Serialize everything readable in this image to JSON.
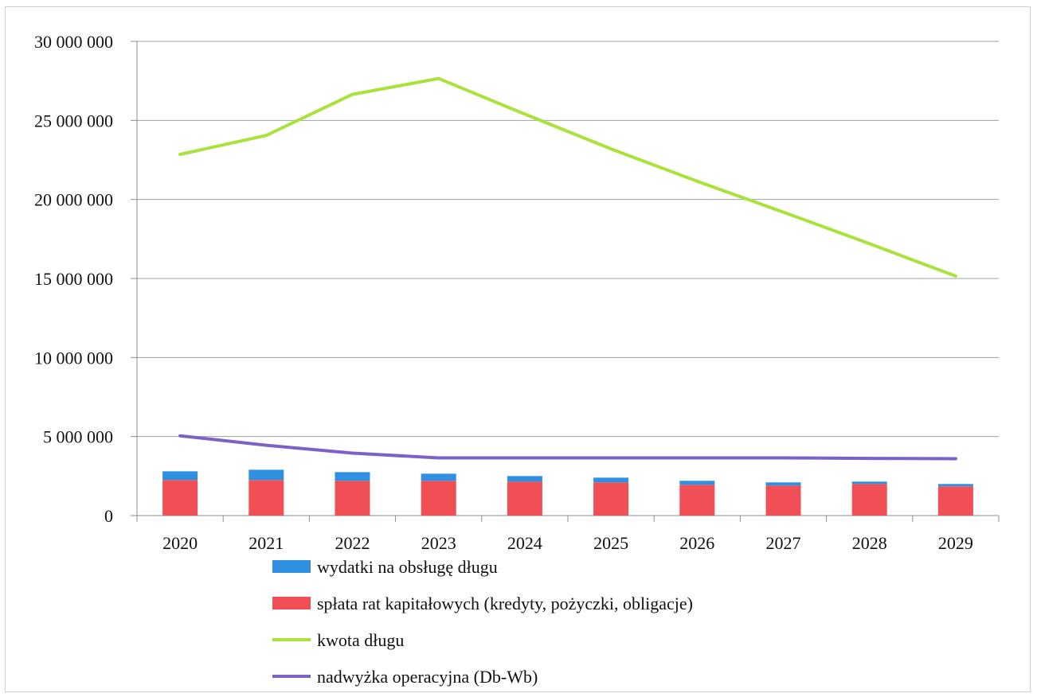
{
  "chart_data": {
    "type": "bar",
    "categories": [
      "2020",
      "2021",
      "2022",
      "2023",
      "2024",
      "2025",
      "2026",
      "2027",
      "2028",
      "2029"
    ],
    "y_ticks": [
      "0",
      "5 000 000",
      "10 000 000",
      "15 000 000",
      "20 000 000",
      "25 000 000",
      "30 000 000"
    ],
    "ylim": [
      0,
      30000000
    ],
    "grid": true,
    "legend_placement": "bottom",
    "stacked": true,
    "series": [
      {
        "name": "spłata rat kapitałowych (kredyty, pożyczki, obligacje)",
        "kind": "bar",
        "color": "#ef4f55",
        "values": [
          2250000,
          2250000,
          2200000,
          2200000,
          2150000,
          2100000,
          1950000,
          1900000,
          2000000,
          1850000
        ]
      },
      {
        "name": "wydatki na obsługę długu",
        "kind": "bar",
        "color": "#2f8fe0",
        "values": [
          550000,
          650000,
          550000,
          450000,
          350000,
          300000,
          250000,
          200000,
          150000,
          150000
        ]
      },
      {
        "name": "kwota długu",
        "kind": "line",
        "color": "#a8e23a",
        "values": [
          22850000,
          24050000,
          26650000,
          27650000,
          25400000,
          23200000,
          21150000,
          19200000,
          17200000,
          15150000
        ]
      },
      {
        "name": "nadwyżka operacyjna (Db-Wb)",
        "kind": "line",
        "color": "#7b62c9",
        "values": [
          5050000,
          4450000,
          3950000,
          3650000,
          3650000,
          3650000,
          3650000,
          3650000,
          3620000,
          3600000
        ]
      }
    ],
    "legend_order": [
      1,
      0,
      2,
      3
    ]
  }
}
